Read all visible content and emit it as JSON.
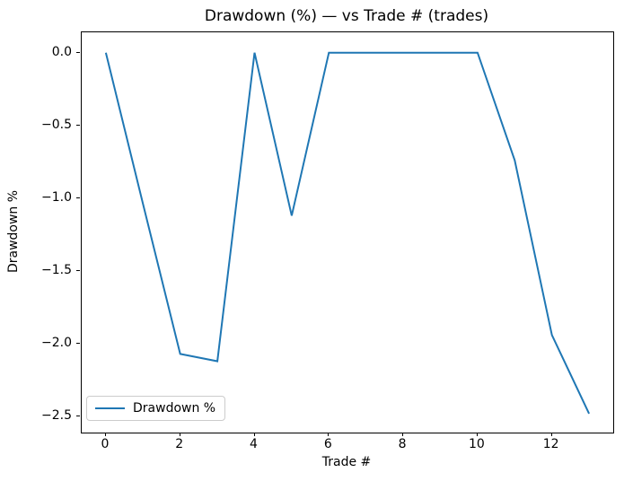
{
  "title": "Drawdown (%) — vs Trade # (trades)",
  "axes": {
    "xlabel": "Trade #",
    "ylabel": "Drawdown %"
  },
  "legend": {
    "label": "Drawdown %"
  },
  "chart_data": {
    "type": "line",
    "title": "Drawdown (%) — vs Trade # (trades)",
    "xlabel": "Trade #",
    "ylabel": "Drawdown %",
    "series": [
      {
        "name": "Drawdown %",
        "color": "#1f77b4",
        "x": [
          0,
          1,
          2,
          3,
          4,
          5,
          6,
          7,
          8,
          9,
          10,
          11,
          12,
          13
        ],
        "y": [
          0.0,
          -1.04,
          -2.07,
          -2.12,
          0.0,
          -1.12,
          0.0,
          0.0,
          0.0,
          0.0,
          0.0,
          -0.74,
          -1.94,
          -2.48
        ]
      }
    ],
    "xlim": [
      -0.65,
      13.65
    ],
    "ylim": [
      -2.61,
      0.14
    ],
    "xticks": [
      0,
      2,
      4,
      6,
      8,
      10,
      12
    ],
    "yticks": [
      0.0,
      -0.5,
      -1.0,
      -1.5,
      -2.0,
      -2.5
    ],
    "grid": false,
    "legend_position": "lower left"
  }
}
